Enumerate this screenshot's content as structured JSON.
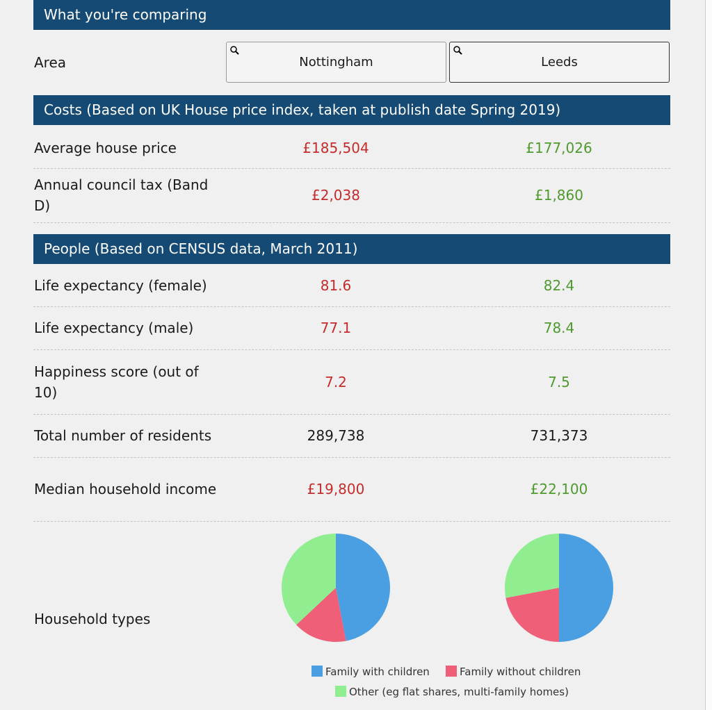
{
  "header": {
    "title": "What you're comparing"
  },
  "area": {
    "label": "Area",
    "values": [
      "Nottingham",
      "Leeds"
    ]
  },
  "costs": {
    "title": "Costs (Based on UK House price index, taken at publish date Spring 2019)",
    "rows": [
      {
        "label": "Average house price",
        "values": [
          "£185,504",
          "£177,026"
        ],
        "colors": [
          "#c62b2b",
          "#4e9a2e"
        ]
      },
      {
        "label": "Annual council tax (Band D)",
        "values": [
          "£2,038",
          "£1,860"
        ],
        "colors": [
          "#c62b2b",
          "#4e9a2e"
        ]
      }
    ]
  },
  "people": {
    "title": "People (Based on CENSUS data, March 2011)",
    "rows": [
      {
        "label": "Life expectancy (female)",
        "values": [
          "81.6",
          "82.4"
        ],
        "colors": [
          "#c62b2b",
          "#4e9a2e"
        ]
      },
      {
        "label": "Life expectancy (male)",
        "values": [
          "77.1",
          "78.4"
        ],
        "colors": [
          "#c62b2b",
          "#4e9a2e"
        ]
      },
      {
        "label": "Happiness score (out of 10)",
        "values": [
          "7.2",
          "7.5"
        ],
        "colors": [
          "#c62b2b",
          "#4e9a2e"
        ]
      },
      {
        "label": "Total number of residents",
        "values": [
          "289,738",
          "731,373"
        ],
        "colors": [
          "#1a1a1a",
          "#1a1a1a"
        ]
      },
      {
        "label": "Median household income",
        "values": [
          "£19,800",
          "£22,100"
        ],
        "colors": [
          "#c62b2b",
          "#4e9a2e"
        ]
      }
    ]
  },
  "household": {
    "label": "Household types",
    "pies": [
      {
        "values": [
          47,
          16,
          37
        ]
      },
      {
        "values": [
          50,
          22,
          28
        ]
      }
    ],
    "legend": [
      {
        "name": "Family with children",
        "color": "#4a9fe3"
      },
      {
        "name": "Family without children",
        "color": "#ef5f78"
      },
      {
        "name": "Other (eg flat shares, multi-family homes)",
        "color": "#90ee90"
      }
    ]
  }
}
